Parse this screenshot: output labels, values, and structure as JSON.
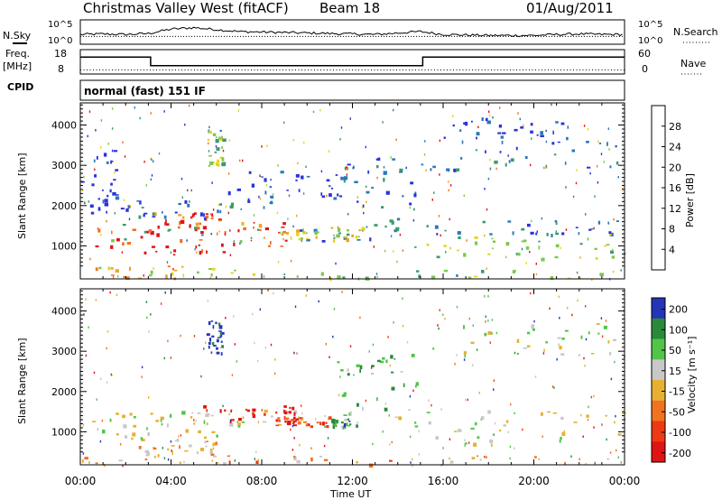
{
  "header": {
    "station": "Christmas Valley West (fitACF)",
    "beam": "Beam 18",
    "date": "01/Aug/2011"
  },
  "labels": {
    "nsky": "N.Sky",
    "nsearch": "N.Search",
    "freq": "Freq.",
    "freq_unit": "[MHz]",
    "nave": "Nave",
    "cpid": "CPID",
    "mode": "normal (fast) 151 IF"
  },
  "chart_data": [
    {
      "id": "noise",
      "type": "line",
      "y_left_ticks": [
        "10^5",
        "10^0"
      ],
      "y_right_ticks": [
        "10^5",
        "10^0"
      ],
      "series": [
        {
          "name": "N.Sky",
          "x_hours": [
            0,
            1,
            2,
            3,
            4,
            5,
            6,
            7,
            8,
            9,
            10,
            11,
            12,
            13,
            14,
            15,
            16,
            17,
            18,
            19,
            20,
            21,
            22,
            23,
            24
          ],
          "log10_values": [
            2.0,
            2.1,
            2.0,
            2.2,
            3.1,
            3.4,
            3.0,
            2.6,
            2.5,
            2.4,
            2.3,
            2.2,
            2.1,
            2.0,
            2.3,
            2.6,
            2.0,
            1.9,
            1.8,
            1.8,
            1.8,
            2.0,
            2.1,
            2.0,
            2.0
          ]
        },
        {
          "name": "N.Search",
          "x_hours": [
            0,
            6,
            12,
            18,
            24
          ],
          "log10_values": [
            1.6,
            1.6,
            1.6,
            1.6,
            1.6
          ]
        }
      ]
    },
    {
      "id": "freq_nave",
      "type": "line",
      "y_left_ticks": [
        "18",
        "8"
      ],
      "y_right_ticks": [
        "60",
        "0"
      ],
      "series": [
        {
          "name": "Freq.",
          "unit": "MHz",
          "steps": [
            [
              0,
              15
            ],
            [
              3.1,
              10.5
            ],
            [
              15.1,
              15
            ],
            [
              24,
              15
            ]
          ]
        },
        {
          "name": "Nave",
          "x_hours": [
            0,
            24
          ],
          "values": [
            10,
            10
          ]
        }
      ]
    },
    {
      "id": "power",
      "type": "heatmap",
      "ylabel": "Slant Range [km]",
      "y_ticks": [
        1000,
        2000,
        3000,
        4000
      ],
      "ylim": [
        180,
        4550
      ],
      "xlim_hours": [
        0,
        24
      ],
      "colorbar_label": "Power [dB]",
      "colorbar_ticks": [
        "4",
        "8",
        "12",
        "16",
        "20",
        "24",
        "28"
      ],
      "colors": [
        "#2b33d9",
        "#2a78b8",
        "#3a9a6e",
        "#7cc84e",
        "#e6d51f",
        "#f0a323",
        "#f07322",
        "#e11414"
      ],
      "regions": [
        {
          "t0": 1.3,
          "t1": 14.2,
          "r0": 1120,
          "r1": 1550,
          "level": 0.25
        },
        {
          "t0": 0.5,
          "t1": 6.5,
          "r0": 780,
          "r1": 1500,
          "level": 0.95
        },
        {
          "t0": 3.2,
          "t1": 5.8,
          "r0": 1450,
          "r1": 1850,
          "level": 0.85
        },
        {
          "t0": 6.0,
          "t1": 9.2,
          "r0": 1000,
          "r1": 1700,
          "level": 0.85
        },
        {
          "t0": 9.0,
          "t1": 12.5,
          "r0": 1150,
          "r1": 1480,
          "level": 0.55
        },
        {
          "t0": 14.7,
          "t1": 24.0,
          "r0": 700,
          "r1": 1250,
          "level": 0.45
        },
        {
          "t0": 15.2,
          "t1": 24.0,
          "r0": 1300,
          "r1": 1650,
          "level": 0.15
        },
        {
          "t0": 14.9,
          "t1": 23.8,
          "r0": 2900,
          "r1": 3700,
          "level": 0.15
        },
        {
          "t0": 16.0,
          "t1": 21.5,
          "r0": 3700,
          "r1": 4200,
          "level": 0.1
        },
        {
          "t0": 0.6,
          "t1": 6.0,
          "r0": 200,
          "r1": 520,
          "level": 0.65
        },
        {
          "t0": 6.0,
          "t1": 24.0,
          "r0": 200,
          "r1": 420,
          "level": 0.4
        },
        {
          "t0": 0.0,
          "t1": 1.8,
          "r0": 1800,
          "r1": 3400,
          "level": 0.05
        },
        {
          "t0": 2.0,
          "t1": 8.5,
          "r0": 1700,
          "r1": 2200,
          "level": 0.15
        },
        {
          "t0": 6.5,
          "t1": 11.5,
          "r0": 2200,
          "r1": 2900,
          "level": 0.05
        },
        {
          "t0": 5.6,
          "t1": 6.3,
          "r0": 3000,
          "r1": 3900,
          "level": 0.4
        },
        {
          "t0": 11.3,
          "t1": 14.8,
          "r0": 1500,
          "r1": 3200,
          "level": 0.18
        }
      ]
    },
    {
      "id": "velocity",
      "type": "heatmap",
      "ylabel": "Slant Range [km]",
      "xlabel": "Time UT",
      "x_ticks": [
        "00:00",
        "04:00",
        "08:00",
        "12:00",
        "16:00",
        "20:00",
        "00:00"
      ],
      "y_ticks": [
        1000,
        2000,
        3000,
        4000
      ],
      "ylim": [
        180,
        4550
      ],
      "xlim_hours": [
        0,
        24
      ],
      "colorbar_label": "Velocity [m s⁻¹]",
      "colorbar_ticks": [
        "200",
        "100",
        "50",
        "15",
        "-15",
        "-50",
        "-100",
        "-200"
      ],
      "colors": [
        "#2535b8",
        "#2a8a3a",
        "#52c44a",
        "#c8c8c8",
        "#e8b032",
        "#f07322",
        "#ee3a14",
        "#e11414"
      ],
      "regions": [
        {
          "t0": 0.5,
          "t1": 6.0,
          "r0": 800,
          "r1": 1500,
          "level": 0.45
        },
        {
          "t0": 1.3,
          "t1": 14.2,
          "r0": 1150,
          "r1": 1550,
          "level": 0.45
        },
        {
          "t0": 5.3,
          "t1": 9.5,
          "r0": 1250,
          "r1": 1700,
          "level": 0.95
        },
        {
          "t0": 8.5,
          "t1": 11.0,
          "r0": 1150,
          "r1": 1400,
          "level": 0.85
        },
        {
          "t0": 11.0,
          "t1": 12.3,
          "r0": 1150,
          "r1": 1350,
          "level": 0.25
        },
        {
          "t0": 14.7,
          "t1": 24.0,
          "r0": 700,
          "r1": 1550,
          "level": 0.45
        },
        {
          "t0": 14.9,
          "t1": 23.8,
          "r0": 2900,
          "r1": 3700,
          "level": 0.45
        },
        {
          "t0": 0.0,
          "t1": 24.0,
          "r0": 200,
          "r1": 450,
          "level": 0.6
        },
        {
          "t0": 5.5,
          "t1": 6.3,
          "r0": 2900,
          "r1": 3800,
          "level": 0.0
        },
        {
          "t0": 11.3,
          "t1": 14.8,
          "r0": 1500,
          "r1": 3000,
          "level": 0.3
        },
        {
          "t0": 2.0,
          "t1": 6.0,
          "r0": 400,
          "r1": 800,
          "level": 0.55
        }
      ]
    }
  ]
}
